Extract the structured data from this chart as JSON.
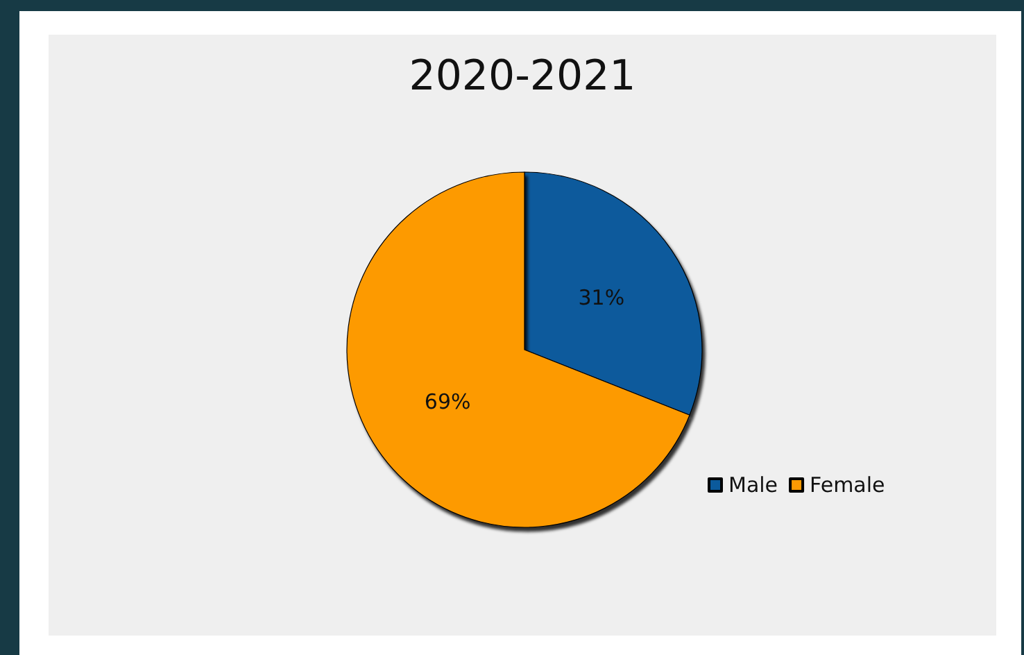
{
  "chart_data": {
    "type": "pie",
    "title": "2020-2021",
    "categories": [
      "Male",
      "Female"
    ],
    "values": [
      31,
      69
    ],
    "colors": [
      "#0b5a9c",
      "#fd9a03"
    ],
    "value_labels": [
      "31%",
      "69%"
    ],
    "legend": "right"
  }
}
